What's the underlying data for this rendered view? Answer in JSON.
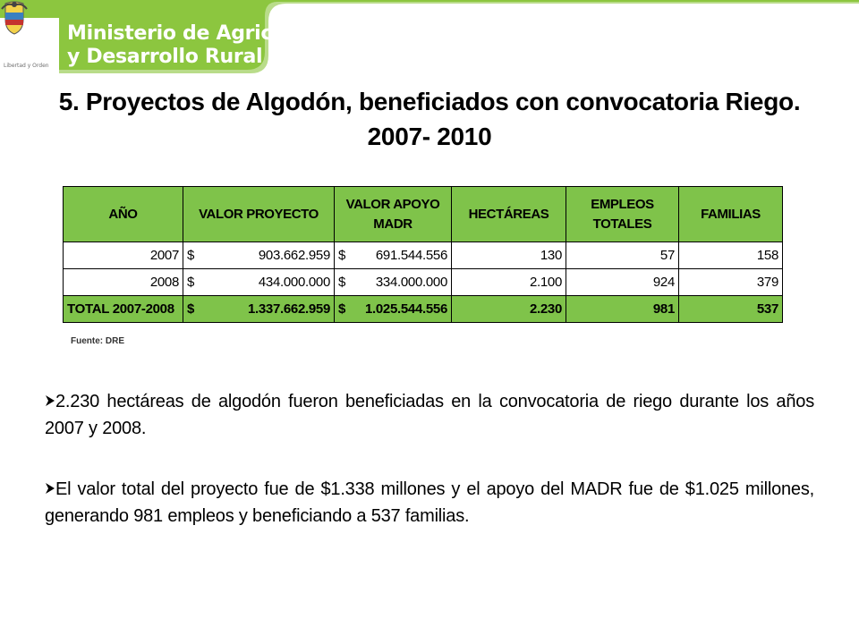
{
  "header": {
    "ministry_line1": "Ministerio de Agricultura",
    "ministry_line2": "y Desarrollo Rural",
    "motto": "Libertad y Orden",
    "brand_color": "#8cc63f"
  },
  "title": "5. Proyectos de Algodón, beneficiados con convocatoria Riego. 2007- 2010",
  "table": {
    "headers": {
      "anio": "AÑO",
      "valor_proyecto": "VALOR PROYECTO",
      "valor_apoyo_l1": "VALOR APOYO",
      "valor_apoyo_l2": "MADR",
      "hectareas": "HECTÁREAS",
      "empleos_l1": "EMPLEOS",
      "empleos_l2": "TOTALES",
      "familias": "FAMILIAS"
    },
    "rows": [
      {
        "anio": "2007",
        "cur1": "$",
        "valor_proyecto": "903.662.959",
        "cur2": "$",
        "valor_apoyo": "691.544.556",
        "hectareas": "130",
        "empleos": "57",
        "familias": "158"
      },
      {
        "anio": "2008",
        "cur1": "$",
        "valor_proyecto": "434.000.000",
        "cur2": "$",
        "valor_apoyo": "334.000.000",
        "hectareas": "2.100",
        "empleos": "924",
        "familias": "379"
      }
    ],
    "total": {
      "anio": "TOTAL 2007-2008",
      "cur1": "$",
      "valor_proyecto": "1.337.662.959",
      "cur2": "$",
      "valor_apoyo": "1.025.544.556",
      "hectareas": "2.230",
      "empleos": "981",
      "familias": "537"
    },
    "header_color": "#7fc34a"
  },
  "source": "Fuente: DRE",
  "bullets": [
    "2.230 hectáreas de algodón fueron beneficiadas en la convocatoria de riego durante los años 2007 y 2008.",
    "El valor total del proyecto fue de $1.338 millones y el apoyo del MADR fue de $1.025 millones, generando 981 empleos y beneficiando a 537 familias."
  ],
  "bullet_icon": "arrow-bullet-icon"
}
